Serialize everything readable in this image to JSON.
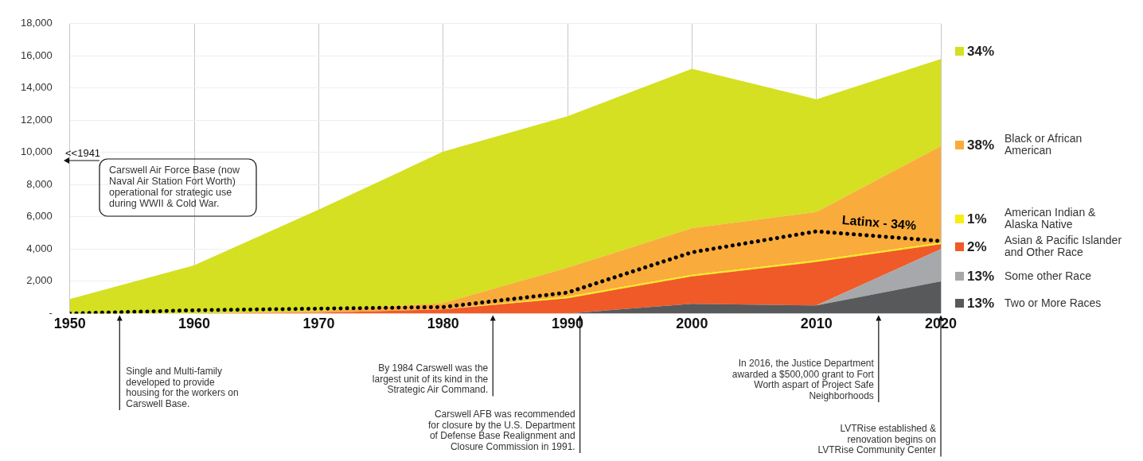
{
  "chart_data": {
    "type": "area",
    "stacked": true,
    "x": [
      1950,
      1960,
      1970,
      1980,
      1990,
      2000,
      2010,
      2020
    ],
    "xlim": [
      1950,
      2020
    ],
    "xticks": [
      1950,
      1960,
      1970,
      1980,
      1990,
      2000,
      2010,
      2020
    ],
    "ylim": [
      0,
      18000
    ],
    "yticks": [
      {
        "value": 0,
        "label": "-"
      },
      {
        "value": 2000,
        "label": "2,000"
      },
      {
        "value": 4000,
        "label": "4,000"
      },
      {
        "value": 6000,
        "label": "6,000"
      },
      {
        "value": 8000,
        "label": "8,000"
      },
      {
        "value": 10000,
        "label": "10,000"
      },
      {
        "value": 12000,
        "label": "12,000"
      },
      {
        "value": 14000,
        "label": "14,000"
      },
      {
        "value": 16000,
        "label": "16,000"
      },
      {
        "value": 18000,
        "label": "18,000"
      }
    ],
    "grid": true,
    "legend": "right",
    "series": [
      {
        "name": "13% Two or More Races",
        "color": "#58595b",
        "values": [
          0,
          0,
          0,
          0,
          0,
          600,
          500,
          2000
        ]
      },
      {
        "name": "13% Some other Race",
        "color": "#a6a8ab",
        "values": [
          0,
          0,
          0,
          0,
          0,
          0,
          0,
          2000
        ]
      },
      {
        "name": "2% Asian & Pacific Islander and Other Race",
        "color": "#f05a28",
        "values": [
          0,
          0,
          50,
          250,
          950,
          1700,
          2700,
          300
        ]
      },
      {
        "name": "1% American Indian & Alaska Native",
        "color": "#f7ec13",
        "values": [
          0,
          0,
          0,
          0,
          100,
          100,
          100,
          100
        ]
      },
      {
        "name": "38% Black or African American",
        "color": "#f9ab3c",
        "values": [
          0,
          0,
          100,
          400,
          1800,
          2900,
          3000,
          6000
        ]
      },
      {
        "name": "34%",
        "color": "#d4e021",
        "values": [
          900,
          3000,
          6300,
          9400,
          9400,
          9900,
          7000,
          5400
        ]
      },
      {
        "name": "Latinx - 34%",
        "type": "line",
        "color": "#000000",
        "line_style": "dotted",
        "values": [
          0,
          200,
          300,
          400,
          1300,
          3800,
          5100,
          4500
        ]
      }
    ],
    "annotations": [
      "<<1941",
      "Carswell Air Force Base (now Naval Air Station Fort Worth) operational for strategic use during WWII & Cold War.",
      {
        "text": "Single and Multi-family developed to provide housing for the workers on Carswell Base.",
        "x": 1954,
        "y": 0
      },
      {
        "text": "By 1984 Carswell was the largest unit of its kind in the Strategic Air Command.",
        "x": 1984,
        "y": 0
      },
      {
        "text": "Carswell AFB was recommended for closure by the U.S. Department of Defense Base Realignment and Closure Commission in 1991.",
        "x": 1991,
        "y": 0
      },
      {
        "text": "In 2016, the Justice Department awarded a $500,000 grant to Fort Worth aspart of Project Safe Neighborhoods",
        "x": 2015,
        "y": 0
      },
      {
        "text": "LVTRise established & renovation begins on LVTRise Community Center",
        "x": 2020,
        "y": 0
      }
    ]
  }
}
